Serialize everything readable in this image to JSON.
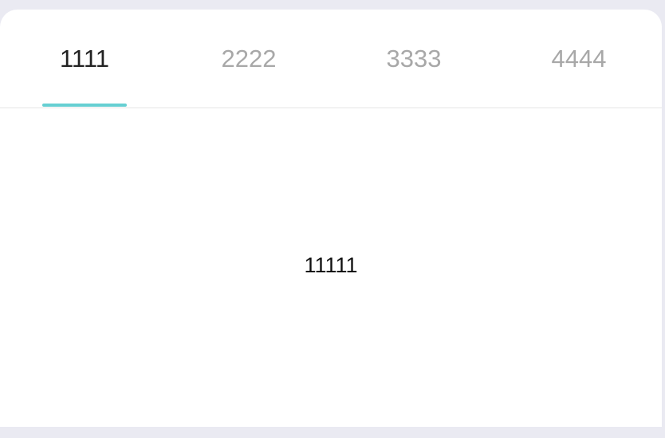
{
  "tabs": [
    {
      "label": "1111",
      "active": true
    },
    {
      "label": "2222",
      "active": false
    },
    {
      "label": "3333",
      "active": false
    },
    {
      "label": "4444",
      "active": false
    }
  ],
  "content": {
    "text": "11111"
  },
  "colors": {
    "indicator": "#66cfd2",
    "active_text": "#222222",
    "inactive_text": "#a8a8a8",
    "background": "#eaeaf2"
  }
}
